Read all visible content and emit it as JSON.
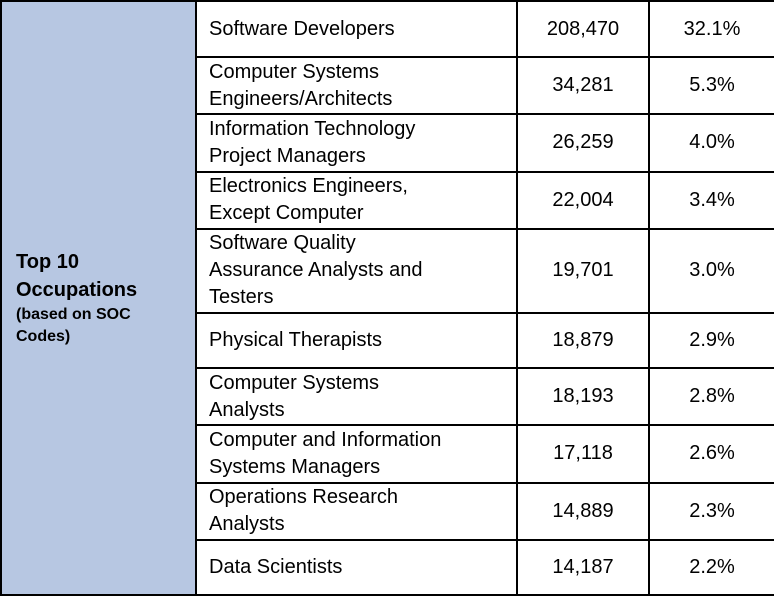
{
  "header": {
    "title_line1": "Top 10",
    "title_line2": "Occupations",
    "subtitle_line1": "(based on SOC",
    "subtitle_line2": "Codes)"
  },
  "rows": [
    {
      "occupation": "Software Developers",
      "count": "208,470",
      "percent": "32.1%"
    },
    {
      "occupation": "Computer Systems\nEngineers/Architects",
      "count": "34,281",
      "percent": "5.3%"
    },
    {
      "occupation": "Information Technology\nProject Managers",
      "count": "26,259",
      "percent": "4.0%"
    },
    {
      "occupation": "Electronics Engineers,\nExcept Computer",
      "count": "22,004",
      "percent": "3.4%"
    },
    {
      "occupation": "Software Quality\nAssurance Analysts and\nTesters",
      "count": "19,701",
      "percent": "3.0%"
    },
    {
      "occupation": "Physical Therapists",
      "count": "18,879",
      "percent": "2.9%"
    },
    {
      "occupation": "Computer Systems\nAnalysts",
      "count": "18,193",
      "percent": "2.8%"
    },
    {
      "occupation": "Computer and Information\nSystems Managers",
      "count": "17,118",
      "percent": "2.6%"
    },
    {
      "occupation": "Operations Research\nAnalysts",
      "count": "14,889",
      "percent": "2.3%"
    },
    {
      "occupation": "Data Scientists",
      "count": "14,187",
      "percent": "2.2%"
    }
  ],
  "colors": {
    "header_background": "#b7c7e2",
    "border": "#000000"
  }
}
